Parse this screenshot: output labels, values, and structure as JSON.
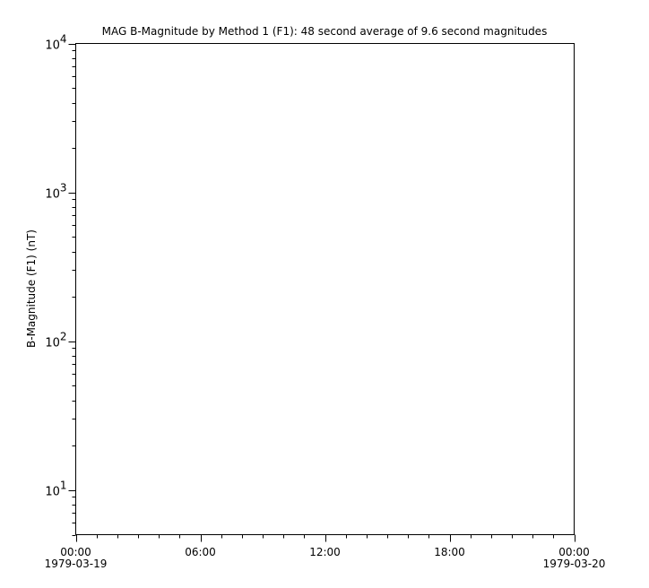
{
  "chart_data": {
    "type": "line",
    "title": "MAG  B-Magnitude by Method 1 (F1): 48 second average of 9.6 second magnitudes",
    "xlabel": "",
    "ylabel": "B-Magnitude (F1) (nT)",
    "yscale": "log",
    "ylim": [
      5,
      10000
    ],
    "xlim": [
      "1979-03-19 00:00",
      "1979-03-20 00:00"
    ],
    "y_ticks": [
      {
        "base": "10",
        "exp": "1",
        "value": 10
      },
      {
        "base": "10",
        "exp": "2",
        "value": 100
      },
      {
        "base": "10",
        "exp": "3",
        "value": 1000
      },
      {
        "base": "10",
        "exp": "4",
        "value": 10000
      }
    ],
    "x_ticks": [
      {
        "hours": 0,
        "time": "00:00",
        "date": "1979-03-19"
      },
      {
        "hours": 6,
        "time": "06:00",
        "date": ""
      },
      {
        "hours": 12,
        "time": "12:00",
        "date": ""
      },
      {
        "hours": 18,
        "time": "18:00",
        "date": ""
      },
      {
        "hours": 24,
        "time": "00:00",
        "date": "1979-03-20"
      }
    ],
    "x_minor_tick_interval_hours": 1,
    "grid": false,
    "series": []
  }
}
